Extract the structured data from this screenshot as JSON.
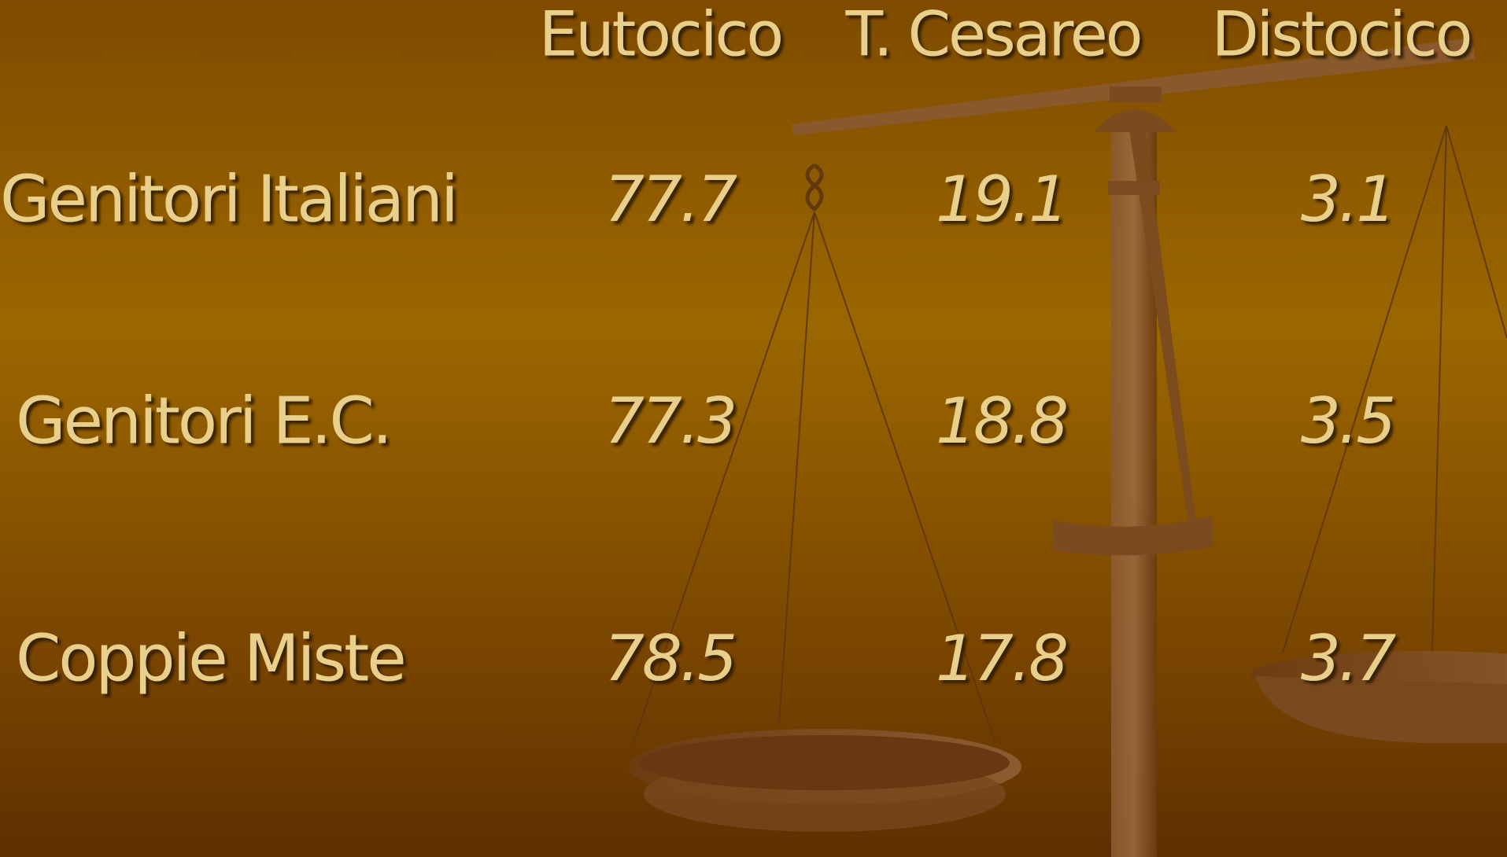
{
  "table": {
    "columns": [
      "Eutocico",
      "T. Cesareo",
      "Distocico"
    ],
    "rows": [
      {
        "label": "Genitori Italiani",
        "values": [
          77.7,
          19.1,
          3.1
        ]
      },
      {
        "label": "Genitori E.C.",
        "values": [
          77.3,
          18.8,
          3.5
        ]
      },
      {
        "label": "Coppie Miste",
        "values": [
          78.5,
          17.8,
          3.7
        ]
      }
    ]
  }
}
